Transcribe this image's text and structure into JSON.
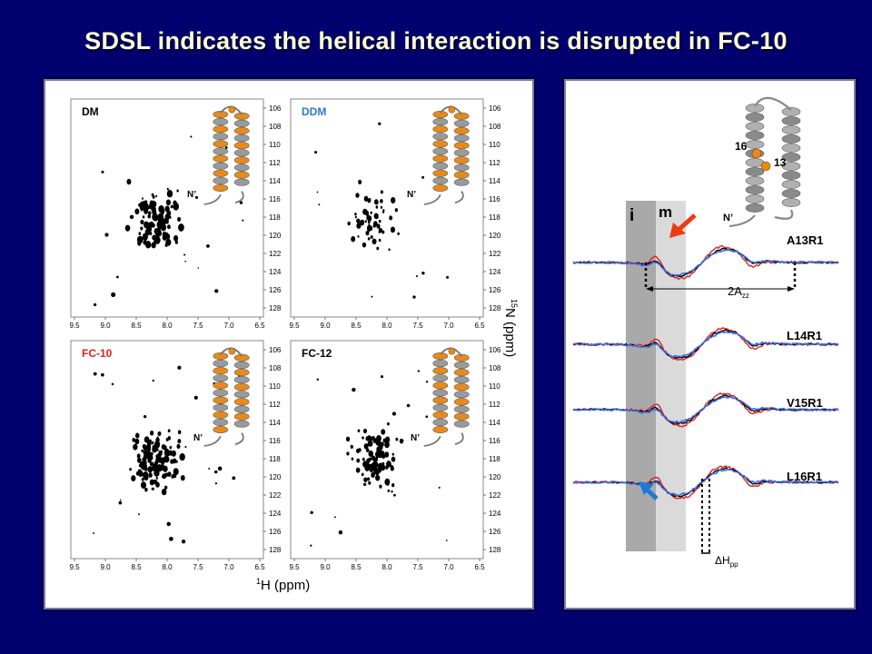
{
  "slide": {
    "title": "SDSL indicates the helical interaction is disrupted in FC-10"
  },
  "nmr": {
    "spectra": [
      {
        "label": "DM",
        "color": "#000000"
      },
      {
        "label": "DDM",
        "color": "#2a78d2"
      },
      {
        "label": "FC-10",
        "color": "#e02020"
      },
      {
        "label": "FC-12",
        "color": "#000000"
      }
    ],
    "x_ticks": [
      "9.5",
      "9.0",
      "8.5",
      "8.0",
      "7.5",
      "7.0",
      "6.5"
    ],
    "y_ticks": [
      "106",
      "108",
      "110",
      "112",
      "114",
      "116",
      "118",
      "120",
      "122",
      "124",
      "126",
      "128"
    ],
    "x_axis_label": "1H (ppm)",
    "x_axis_sup": "1",
    "x_axis_rest": "H (ppm)",
    "y_axis_sup": "15",
    "y_axis_rest": "N (ppm)",
    "n_terminus_label": "N’"
  },
  "epr": {
    "structure_labels": {
      "site_a": "16",
      "site_b": "13",
      "n_terminus": "N’"
    },
    "regions": {
      "immobile": "i",
      "mobile": "m"
    },
    "traces": [
      {
        "label": "A13R1"
      },
      {
        "label": "L14R1"
      },
      {
        "label": "V15R1"
      },
      {
        "label": "L16R1"
      }
    ],
    "annotations": {
      "azz_main": "2A",
      "azz_sub": "zz",
      "hpp_main": "ΔH",
      "hpp_sub": "pp"
    },
    "colors": {
      "red": "#e02020",
      "blue": "#3a6fe0",
      "black": "#000000",
      "arrow_red": "#ee3a14",
      "arrow_blue": "#1e78d8"
    }
  }
}
